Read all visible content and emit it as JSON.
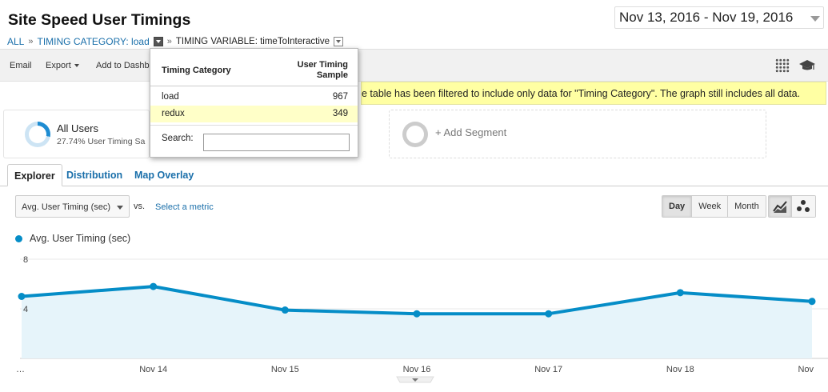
{
  "header": {
    "title": "Site Speed User Timings",
    "date_range": "Nov 13, 2016 - Nov 19, 2016"
  },
  "breadcrumb": {
    "all": "ALL",
    "sep": "»",
    "category": "TIMING CATEGORY: load",
    "variable": "TIMING VARIABLE: timeToInteractive"
  },
  "toolbar": {
    "email": "Email",
    "export": "Export",
    "add_to_dashboard": "Add to Dashb"
  },
  "filter_note": "e table has been filtered to include only data for \"Timing Category\". The graph still includes all data.",
  "segments": {
    "all_users": {
      "name": "All Users",
      "sub": "27.74% User Timing Sa"
    },
    "add_segment": "+ Add Segment"
  },
  "tabs": [
    "Explorer",
    "Distribution",
    "Map Overlay"
  ],
  "controls": {
    "metric": "Avg. User Timing (sec)",
    "vs": "vs.",
    "select_metric": "Select a metric",
    "period": [
      "Day",
      "Week",
      "Month"
    ],
    "active_period": "Day"
  },
  "dropdown": {
    "col1": "Timing Category",
    "col2": "User Timing Sample",
    "rows": [
      {
        "label": "load",
        "value": "967"
      },
      {
        "label": "redux",
        "value": "349"
      }
    ],
    "search_label": "Search:",
    "search_value": ""
  },
  "colors": {
    "line": "#058dc7",
    "area": "#e6f4fa",
    "highlight": "#ffffa3"
  },
  "chart_data": {
    "type": "area",
    "title": "",
    "series": [
      {
        "name": "Avg. User Timing (sec)",
        "values": [
          5.0,
          5.8,
          3.9,
          3.6,
          3.6,
          5.3,
          4.6
        ]
      }
    ],
    "x": [
      "Nov 13",
      "Nov 14",
      "Nov 15",
      "Nov 16",
      "Nov 17",
      "Nov 18",
      "Nov 19"
    ],
    "x_tick_labels": [
      "…",
      "Nov 14",
      "Nov 15",
      "Nov 16",
      "Nov 17",
      "Nov 18",
      "Nov"
    ],
    "y_ticks": [
      "8",
      "4"
    ],
    "ylim": [
      0,
      8
    ],
    "grid": true,
    "legend": "top-left"
  }
}
